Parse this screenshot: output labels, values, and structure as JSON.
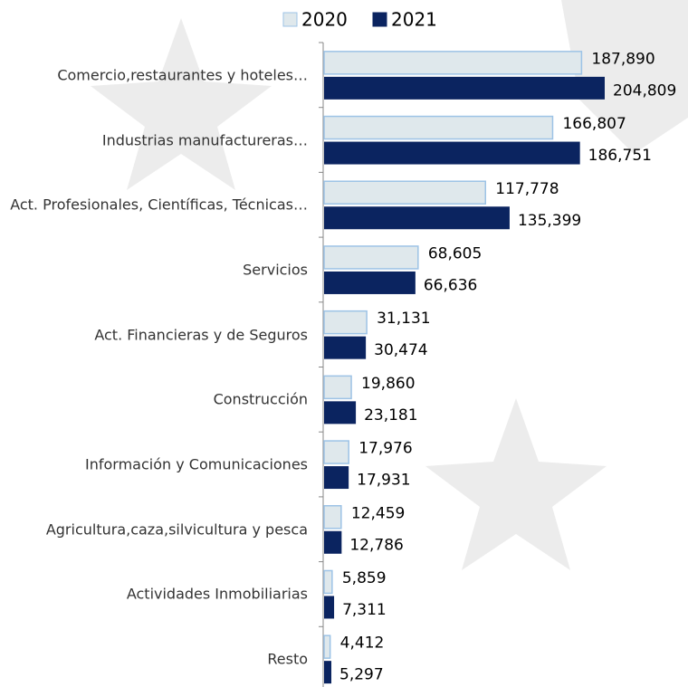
{
  "chart_data": {
    "type": "bar",
    "orientation": "horizontal",
    "categories": [
      "Comercio,restaurantes y hoteles…",
      "Industrias manufactureras…",
      "Act. Profesionales, Científicas, Técnicas…",
      "Servicios",
      "Act. Financieras y de Seguros",
      "Construcción",
      "Información y Comunicaciones",
      "Agricultura,caza,silvicultura y pesca",
      "Actividades Inmobiliarias",
      "Resto"
    ],
    "series": [
      {
        "name": "2020",
        "color": "#dfe8ec",
        "edge_color": "#9dc3e6",
        "values": [
          187890,
          166807,
          117778,
          68605,
          31131,
          19860,
          17976,
          12459,
          5859,
          4412
        ],
        "value_labels": [
          "187,890",
          "166,807",
          "117,778",
          "68,605",
          "31,131",
          "19,860",
          "17,976",
          "12,459",
          "5,859",
          "4,412"
        ]
      },
      {
        "name": "2021",
        "color": "#0b2460",
        "values": [
          204809,
          186751,
          135399,
          66636,
          30474,
          23181,
          17931,
          12786,
          7311,
          5297
        ],
        "value_labels": [
          "204,809",
          "186,751",
          "135,399",
          "66,636",
          "30,474",
          "23,181",
          "17,931",
          "12,786",
          "7,311",
          "5,297"
        ]
      }
    ],
    "legend": "top"
  }
}
